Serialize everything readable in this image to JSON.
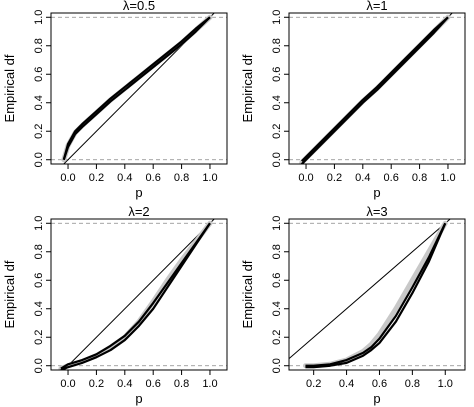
{
  "figure": {
    "panels": [
      {
        "title": "λ=0.5",
        "xlabel": "p",
        "ylabel": "Empirical df",
        "x_ticks": [
          "0.0",
          "0.2",
          "0.4",
          "0.6",
          "0.8",
          "1.0"
        ],
        "y_ticks": [
          "0.0",
          "0.2",
          "0.4",
          "0.6",
          "0.8",
          "1.0"
        ]
      },
      {
        "title": "λ=1",
        "xlabel": "p",
        "ylabel": "Empirical df",
        "x_ticks": [
          "0.0",
          "0.2",
          "0.4",
          "0.6",
          "0.8",
          "1.0"
        ],
        "y_ticks": [
          "0.0",
          "0.2",
          "0.4",
          "0.6",
          "0.8",
          "1.0"
        ]
      },
      {
        "title": "λ=2",
        "xlabel": "p",
        "ylabel": "Empirical df",
        "x_ticks": [
          "0.0",
          "0.2",
          "0.4",
          "0.6",
          "0.8",
          "1.0"
        ],
        "y_ticks": [
          "0.0",
          "0.2",
          "0.4",
          "0.6",
          "0.8",
          "1.0"
        ]
      },
      {
        "title": "λ=3",
        "xlabel": "p",
        "ylabel": "Empirical df",
        "x_ticks": [
          "0.2",
          "0.4",
          "0.6",
          "0.8",
          "1.0"
        ],
        "y_ticks": [
          "0.0",
          "0.2",
          "0.4",
          "0.6",
          "0.8",
          "1.0"
        ]
      }
    ]
  },
  "chart_data": [
    {
      "type": "line",
      "title": "λ=0.5",
      "xlabel": "p",
      "ylabel": "Empirical df",
      "xlim": [
        -0.12,
        1.12
      ],
      "ylim": [
        -0.03,
        1.03
      ],
      "x_ticks": [
        0.0,
        0.2,
        0.4,
        0.6,
        0.8,
        1.0
      ],
      "y_ticks": [
        0.0,
        0.2,
        0.4,
        0.6,
        0.8,
        1.0
      ],
      "hlines_dashed": [
        0.0,
        1.0
      ],
      "reference_line": [
        [
          -0.1,
          -0.1
        ],
        [
          1.05,
          1.05
        ]
      ],
      "band": {
        "x": [
          -0.03,
          0.0,
          0.05,
          0.1,
          0.2,
          0.3,
          0.4,
          0.5,
          0.6,
          0.7,
          0.8,
          0.9,
          1.0
        ],
        "y": [
          0.0,
          0.1,
          0.19,
          0.24,
          0.33,
          0.42,
          0.5,
          0.58,
          0.66,
          0.74,
          0.82,
          0.91,
          1.0
        ]
      },
      "series": [
        {
          "x": [
            -0.03,
            0.0,
            0.05,
            0.1,
            0.2,
            0.3,
            0.4,
            0.5,
            0.6,
            0.7,
            0.8,
            0.9,
            1.0
          ],
          "y": [
            0.0,
            0.11,
            0.2,
            0.25,
            0.34,
            0.43,
            0.51,
            0.59,
            0.67,
            0.75,
            0.83,
            0.92,
            1.0
          ]
        },
        {
          "x": [
            -0.03,
            0.0,
            0.05,
            0.1,
            0.2,
            0.3,
            0.4,
            0.5,
            0.6,
            0.7,
            0.8,
            0.9,
            1.0
          ],
          "y": [
            0.0,
            0.09,
            0.18,
            0.23,
            0.32,
            0.41,
            0.49,
            0.57,
            0.65,
            0.73,
            0.81,
            0.9,
            1.0
          ]
        }
      ]
    },
    {
      "type": "line",
      "title": "λ=1",
      "xlabel": "p",
      "ylabel": "Empirical df",
      "xlim": [
        -0.12,
        1.12
      ],
      "ylim": [
        -0.03,
        1.03
      ],
      "x_ticks": [
        0.0,
        0.2,
        0.4,
        0.6,
        0.8,
        1.0
      ],
      "y_ticks": [
        0.0,
        0.2,
        0.4,
        0.6,
        0.8,
        1.0
      ],
      "hlines_dashed": [
        0.0,
        1.0
      ],
      "reference_line": [
        [
          -0.1,
          -0.1
        ],
        [
          1.05,
          1.05
        ]
      ],
      "band": {
        "x": [
          -0.03,
          0.1,
          0.2,
          0.3,
          0.4,
          0.5,
          0.6,
          0.7,
          0.8,
          0.9,
          1.0
        ],
        "y": [
          -0.02,
          0.11,
          0.21,
          0.31,
          0.41,
          0.5,
          0.6,
          0.7,
          0.8,
          0.9,
          1.0
        ]
      },
      "series": [
        {
          "x": [
            -0.03,
            0.1,
            0.2,
            0.3,
            0.4,
            0.5,
            0.6,
            0.7,
            0.8,
            0.9,
            1.0
          ],
          "y": [
            -0.01,
            0.12,
            0.22,
            0.32,
            0.42,
            0.51,
            0.61,
            0.71,
            0.81,
            0.91,
            1.0
          ]
        },
        {
          "x": [
            -0.03,
            0.1,
            0.2,
            0.3,
            0.4,
            0.5,
            0.6,
            0.7,
            0.8,
            0.9,
            1.0
          ],
          "y": [
            -0.03,
            0.1,
            0.2,
            0.3,
            0.4,
            0.49,
            0.59,
            0.69,
            0.79,
            0.89,
            1.0
          ]
        }
      ]
    },
    {
      "type": "line",
      "title": "λ=2",
      "xlabel": "p",
      "ylabel": "Empirical df",
      "xlim": [
        -0.12,
        1.12
      ],
      "ylim": [
        -0.03,
        1.03
      ],
      "x_ticks": [
        0.0,
        0.2,
        0.4,
        0.6,
        0.8,
        1.0
      ],
      "y_ticks": [
        0.0,
        0.2,
        0.4,
        0.6,
        0.8,
        1.0
      ],
      "hlines_dashed": [
        0.0,
        1.0
      ],
      "reference_line": [
        [
          -0.1,
          -0.1
        ],
        [
          1.05,
          1.05
        ]
      ],
      "band": {
        "x": [
          -0.05,
          0.0,
          0.1,
          0.2,
          0.3,
          0.4,
          0.5,
          0.6,
          0.7,
          0.8,
          0.9,
          1.0
        ],
        "y": [
          -0.02,
          0.0,
          0.03,
          0.07,
          0.13,
          0.2,
          0.31,
          0.45,
          0.6,
          0.74,
          0.87,
          1.0
        ]
      },
      "series": [
        {
          "x": [
            -0.05,
            0.0,
            0.1,
            0.2,
            0.3,
            0.4,
            0.5,
            0.6,
            0.7,
            0.8,
            0.9,
            1.0
          ],
          "y": [
            -0.02,
            0.01,
            0.04,
            0.08,
            0.14,
            0.21,
            0.31,
            0.44,
            0.58,
            0.72,
            0.86,
            1.0
          ]
        },
        {
          "x": [
            -0.05,
            0.0,
            0.1,
            0.2,
            0.3,
            0.4,
            0.5,
            0.6,
            0.7,
            0.8,
            0.9,
            1.0
          ],
          "y": [
            -0.03,
            -0.01,
            0.02,
            0.06,
            0.11,
            0.18,
            0.28,
            0.4,
            0.55,
            0.7,
            0.85,
            1.0
          ]
        }
      ]
    },
    {
      "type": "line",
      "title": "λ=3",
      "xlabel": "p",
      "ylabel": "Empirical df",
      "xlim": [
        0.05,
        1.12
      ],
      "ylim": [
        -0.03,
        1.03
      ],
      "x_ticks": [
        0.2,
        0.4,
        0.6,
        0.8,
        1.0
      ],
      "y_ticks": [
        0.0,
        0.2,
        0.4,
        0.6,
        0.8,
        1.0
      ],
      "hlines_dashed": [
        0.0,
        1.0
      ],
      "reference_line": [
        [
          0.05,
          0.05
        ],
        [
          1.05,
          1.05
        ]
      ],
      "band": {
        "x": [
          0.15,
          0.2,
          0.3,
          0.4,
          0.5,
          0.55,
          0.6,
          0.7,
          0.8,
          0.9,
          1.0
        ],
        "y": [
          0.0,
          0.0,
          0.01,
          0.04,
          0.1,
          0.15,
          0.22,
          0.4,
          0.6,
          0.8,
          1.0
        ]
      },
      "series": [
        {
          "x": [
            0.15,
            0.2,
            0.3,
            0.4,
            0.5,
            0.55,
            0.6,
            0.7,
            0.8,
            0.9,
            1.0
          ],
          "y": [
            0.0,
            0.0,
            0.01,
            0.04,
            0.09,
            0.13,
            0.19,
            0.35,
            0.55,
            0.76,
            1.0
          ]
        },
        {
          "x": [
            0.15,
            0.2,
            0.3,
            0.4,
            0.5,
            0.55,
            0.6,
            0.7,
            0.8,
            0.9,
            1.0
          ],
          "y": [
            -0.01,
            -0.01,
            0.0,
            0.02,
            0.07,
            0.11,
            0.16,
            0.31,
            0.51,
            0.73,
            1.0
          ]
        }
      ]
    }
  ]
}
